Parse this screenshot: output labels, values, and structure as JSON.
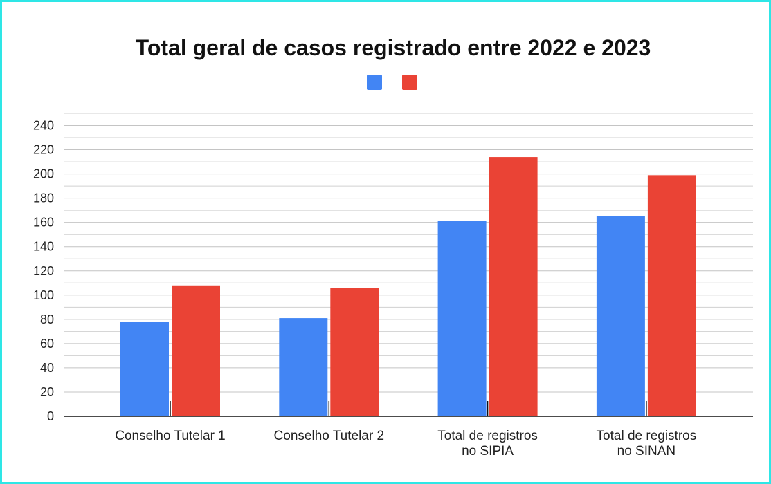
{
  "chart_data": {
    "type": "bar",
    "title": "Total geral de casos registrado entre 2022 e 2023",
    "categories": [
      "Conselho Tutelar 1",
      "Conselho Tutelar 2",
      "Total de registros\nno SIPIA",
      "Total de registros\nno SINAN"
    ],
    "series": [
      {
        "color": "#4285f4",
        "values": [
          78,
          81,
          161,
          165
        ]
      },
      {
        "color": "#ea4335",
        "values": [
          108,
          106,
          214,
          199
        ]
      }
    ],
    "ylim": [
      0,
      250
    ],
    "yticks": [
      0,
      20,
      40,
      60,
      80,
      100,
      120,
      140,
      160,
      180,
      200,
      220,
      240
    ],
    "minor_yticks": [
      10,
      30,
      50,
      70,
      90,
      110,
      130,
      150,
      170,
      190,
      210,
      230,
      250
    ],
    "grid": true
  }
}
